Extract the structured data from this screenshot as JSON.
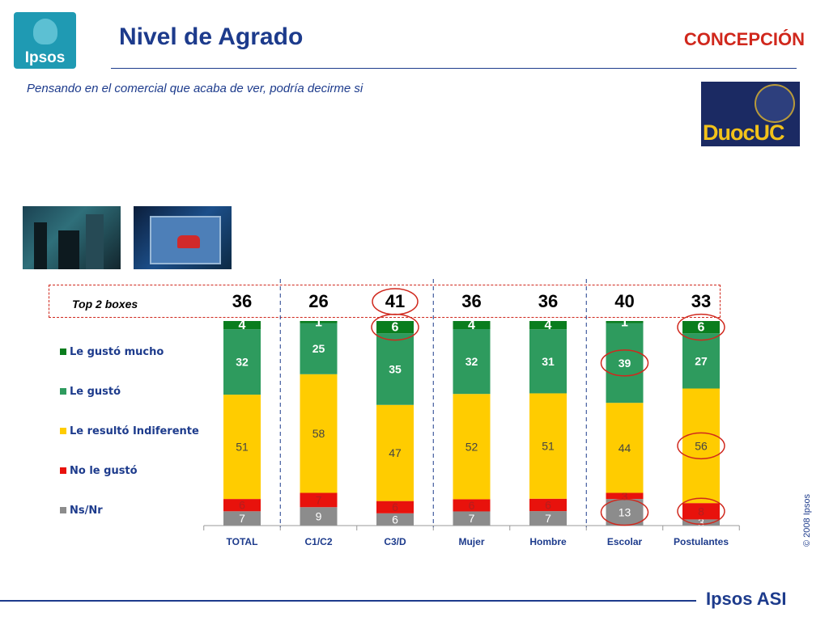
{
  "header": {
    "logo_text": "Ipsos",
    "title": "Nivel de Agrado",
    "region": "CONCEPCIÓN",
    "subtitle": "Pensando en el comercial que acaba de ver, podría decirme si",
    "partner_logo_text": "DuocUC"
  },
  "footer": {
    "copyright": "© 2008 Ipsos",
    "brand": "Ipsos ASI"
  },
  "chart_data": {
    "type": "bar",
    "stacked": true,
    "percent_stacked": true,
    "categories": [
      "TOTAL",
      "C1/C2",
      "C3/D",
      "Mujer",
      "Hombre",
      "Escolar",
      "Postulantes"
    ],
    "series": [
      {
        "name": "Ns/Nr",
        "values": [
          7,
          9,
          6,
          7,
          7,
          13,
          3
        ],
        "color": "#8c8c8c"
      },
      {
        "name": "No le gustó",
        "values": [
          6,
          7,
          6,
          6,
          6,
          3,
          8
        ],
        "color": "#e8120c"
      },
      {
        "name": "Le resultó Indiferente",
        "values": [
          51,
          58,
          47,
          52,
          51,
          44,
          56
        ],
        "color": "#ffcc00"
      },
      {
        "name": "Le gustó",
        "values": [
          32,
          25,
          35,
          32,
          31,
          39,
          27
        ],
        "color": "#2e9b5e"
      },
      {
        "name": "Le gustó mucho",
        "values": [
          4,
          1,
          6,
          4,
          4,
          1,
          6
        ],
        "color": "#0a7d1e"
      }
    ],
    "legend_order": [
      "Le gustó mucho",
      "Le gustó",
      "Le resultó Indiferente",
      "No le gustó",
      "Ns/Nr"
    ],
    "top2_label": "Top 2 boxes",
    "top2_values": [
      36,
      26,
      41,
      36,
      36,
      40,
      33
    ],
    "highlighted_top2": [
      2
    ],
    "highlighted_cells": [
      {
        "category": 2,
        "series": "Le gustó mucho"
      },
      {
        "category": 6,
        "series": "Le gustó mucho"
      },
      {
        "category": 5,
        "series": "Le gustó"
      },
      {
        "category": 6,
        "series": "Le resultó Indiferente"
      },
      {
        "category": 5,
        "series": "Ns/Nr"
      },
      {
        "category": 6,
        "series": "No le gustó"
      }
    ],
    "group_separators_after": [
      0,
      2,
      4
    ],
    "legend_position": "left",
    "grid": false
  }
}
